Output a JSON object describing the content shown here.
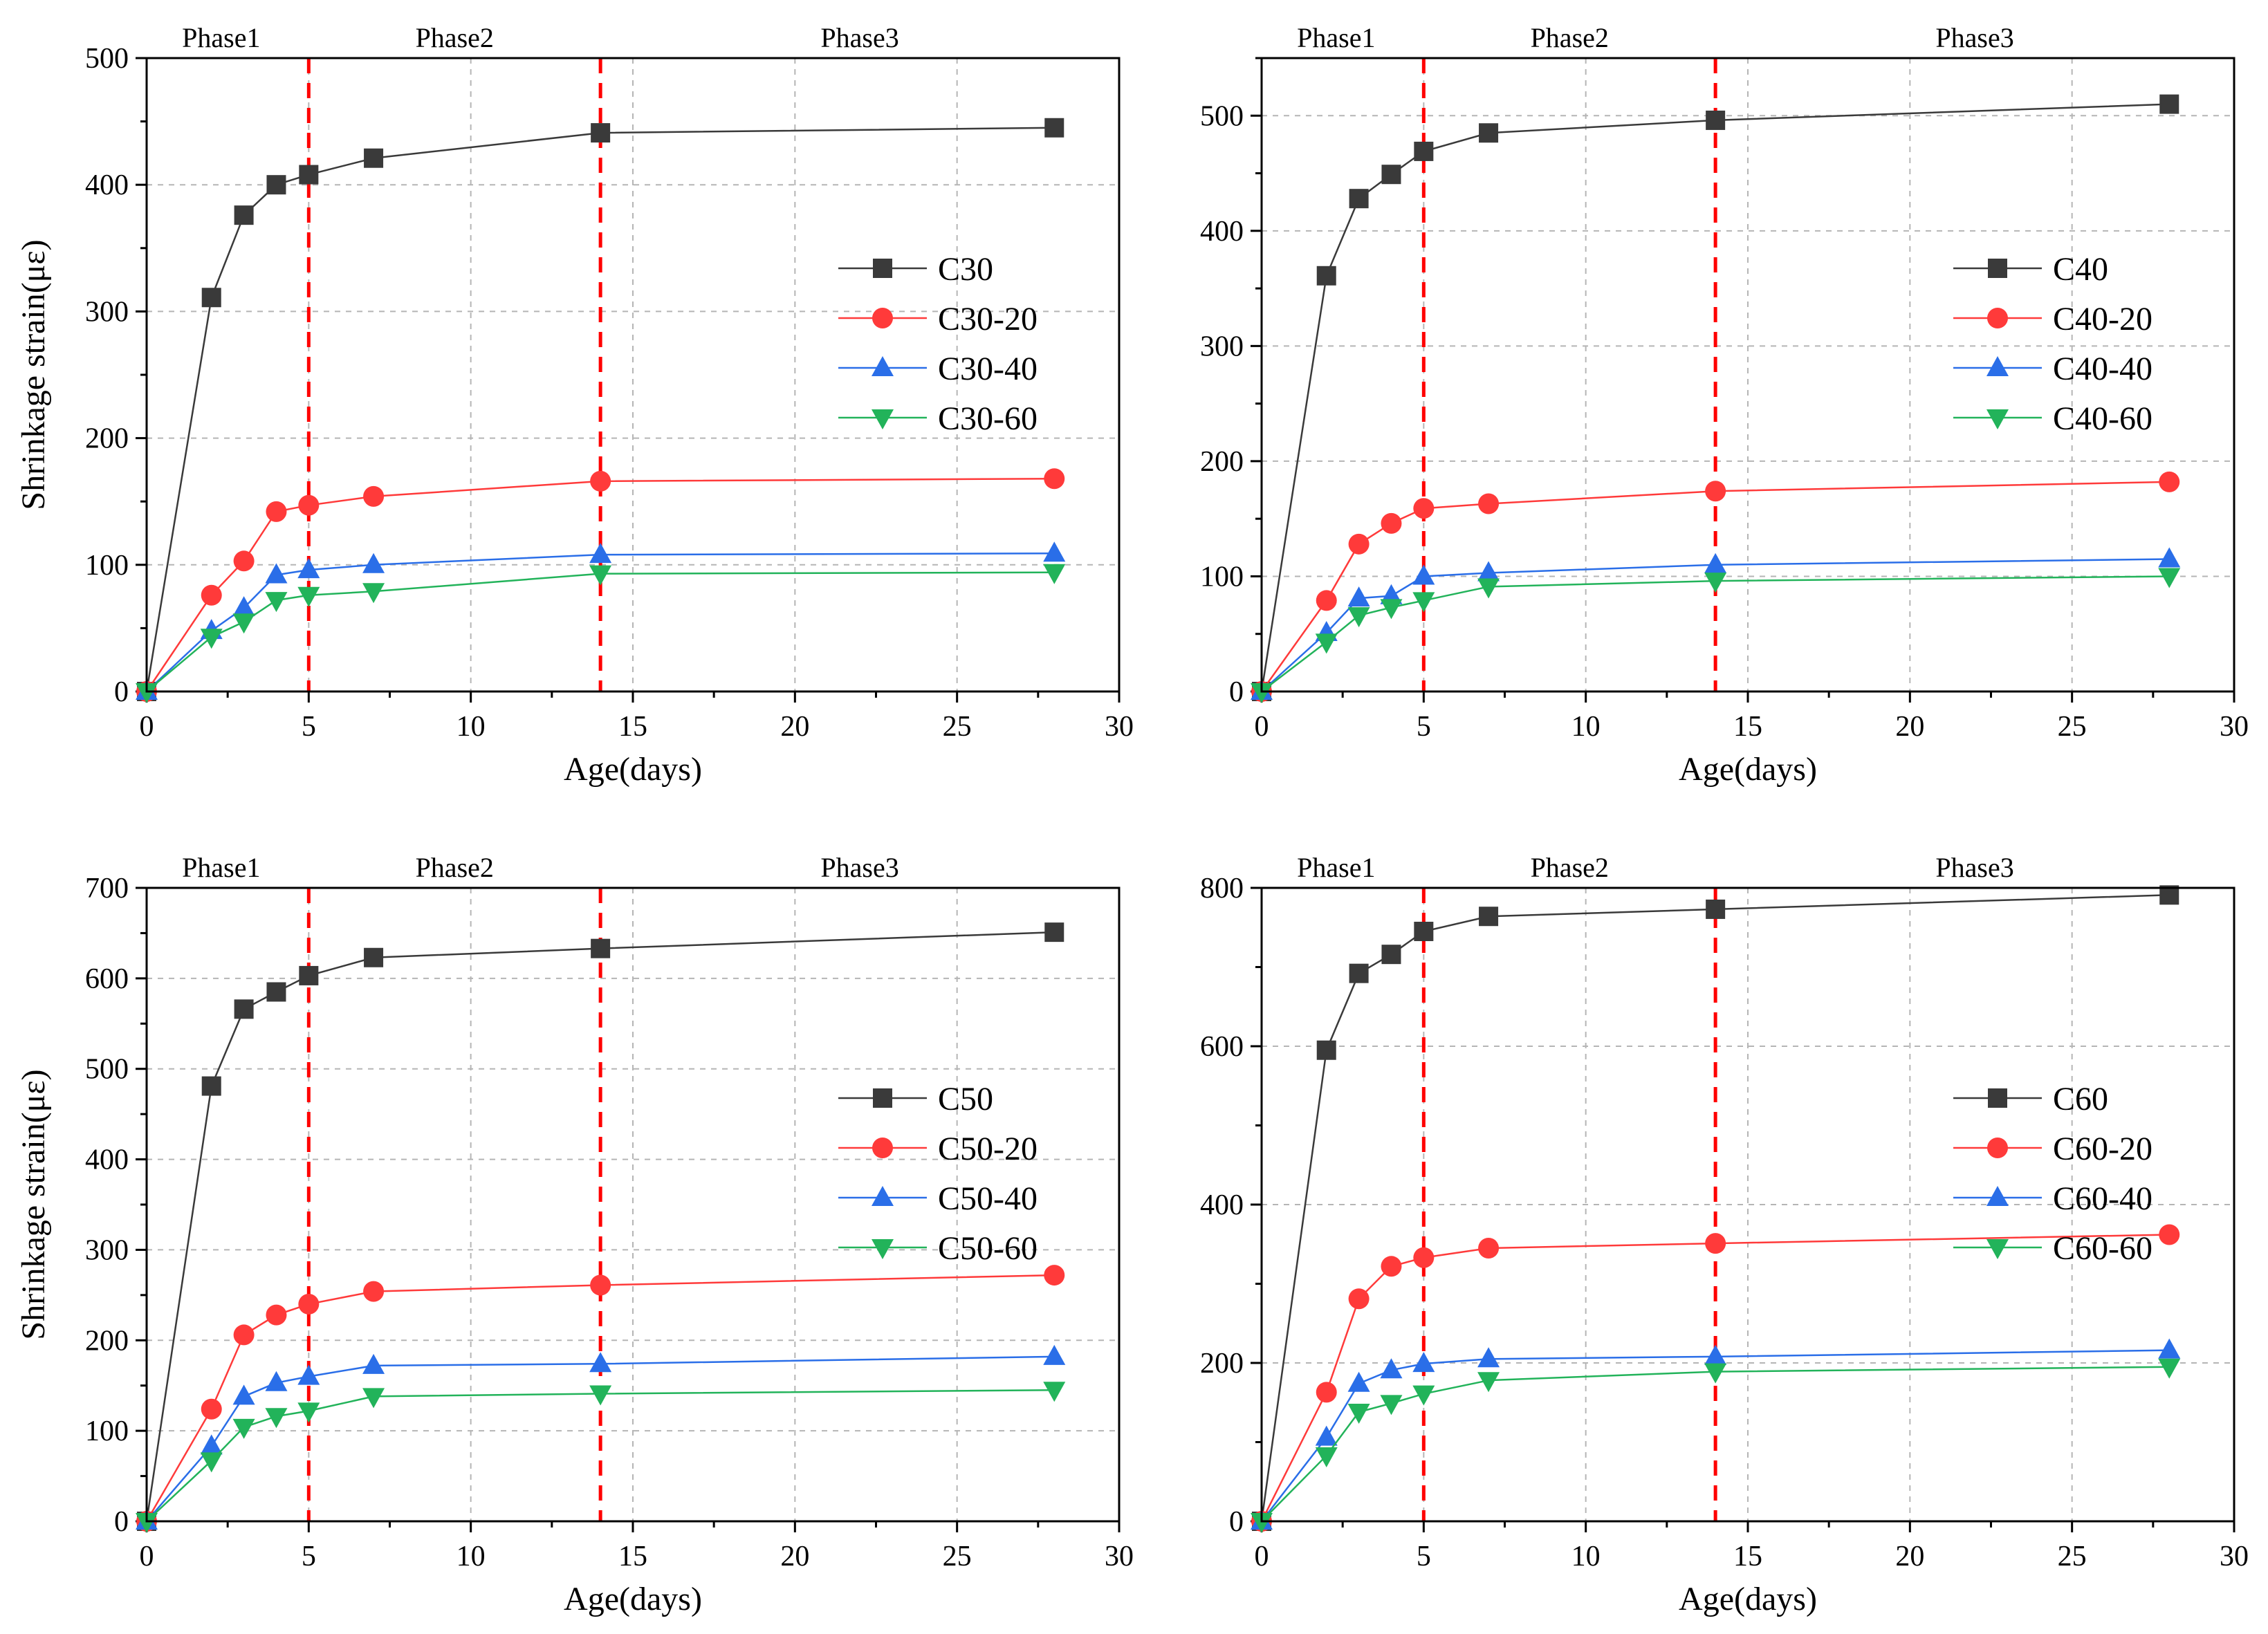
{
  "chart_data": [
    {
      "type": "line",
      "panel": "top-left",
      "xlabel": "Age(days)",
      "ylabel": "Shrinkage strain(με)",
      "xlim": [
        0,
        30
      ],
      "ylim": [
        0,
        500
      ],
      "xticks": [
        0,
        5,
        10,
        15,
        20,
        25,
        30
      ],
      "yticks": [
        0,
        100,
        200,
        300,
        400,
        500
      ],
      "grid": true,
      "legend_position": "center-right",
      "phase_lines": [
        5,
        14
      ],
      "phases": [
        {
          "label": "Phase1",
          "at": 2.3
        },
        {
          "label": "Phase2",
          "at": 9.5
        },
        {
          "label": "Phase3",
          "at": 22.0
        }
      ],
      "x": [
        0,
        2,
        3,
        4,
        5,
        7,
        14,
        28
      ],
      "series": [
        {
          "name": "C30",
          "marker": "square",
          "color": "#3a3a3a",
          "values": [
            0,
            311,
            376,
            400,
            408,
            421,
            441,
            445
          ]
        },
        {
          "name": "C30-20",
          "marker": "circle",
          "color": "#ff3a3a",
          "values": [
            0,
            76,
            103,
            142,
            147,
            154,
            166,
            168
          ]
        },
        {
          "name": "C30-40",
          "marker": "triangle-up",
          "color": "#2a6ee8",
          "values": [
            0,
            48,
            66,
            92,
            96,
            100,
            108,
            109
          ]
        },
        {
          "name": "C30-60",
          "marker": "triangle-down",
          "color": "#22b35a",
          "values": [
            0,
            43,
            55,
            72,
            76,
            79,
            93,
            94
          ]
        }
      ]
    },
    {
      "type": "line",
      "panel": "top-right",
      "xlabel": "Age(days)",
      "ylabel": "",
      "xlim": [
        0,
        30
      ],
      "ylim": [
        0,
        550
      ],
      "xticks": [
        0,
        5,
        10,
        15,
        20,
        25,
        30
      ],
      "yticks": [
        0,
        100,
        200,
        300,
        400,
        500
      ],
      "grid": true,
      "legend_position": "center-right",
      "phase_lines": [
        5,
        14
      ],
      "phases": [
        {
          "label": "Phase1",
          "at": 2.3
        },
        {
          "label": "Phase2",
          "at": 9.5
        },
        {
          "label": "Phase3",
          "at": 22.0
        }
      ],
      "x": [
        0,
        2,
        3,
        4,
        5,
        7,
        14,
        28
      ],
      "series": [
        {
          "name": "C40",
          "marker": "square",
          "color": "#3a3a3a",
          "values": [
            0,
            361,
            428,
            449,
            469,
            485,
            496,
            510
          ]
        },
        {
          "name": "C40-20",
          "marker": "circle",
          "color": "#ff3a3a",
          "values": [
            0,
            79,
            128,
            146,
            159,
            163,
            174,
            182
          ]
        },
        {
          "name": "C40-40",
          "marker": "triangle-up",
          "color": "#2a6ee8",
          "values": [
            0,
            51,
            81,
            83,
            100,
            103,
            110,
            115
          ]
        },
        {
          "name": "C40-60",
          "marker": "triangle-down",
          "color": "#22b35a",
          "values": [
            0,
            43,
            66,
            73,
            79,
            91,
            96,
            100
          ]
        }
      ]
    },
    {
      "type": "line",
      "panel": "bottom-left",
      "xlabel": "Age(days)",
      "ylabel": "Shrinkage strain(με)",
      "xlim": [
        0,
        30
      ],
      "ylim": [
        0,
        700
      ],
      "xticks": [
        0,
        5,
        10,
        15,
        20,
        25,
        30
      ],
      "yticks": [
        0,
        100,
        200,
        300,
        400,
        500,
        600,
        700
      ],
      "grid": true,
      "legend_position": "center-right",
      "phase_lines": [
        5,
        14
      ],
      "phases": [
        {
          "label": "Phase1",
          "at": 2.3
        },
        {
          "label": "Phase2",
          "at": 9.5
        },
        {
          "label": "Phase3",
          "at": 22.0
        }
      ],
      "x": [
        0,
        2,
        3,
        4,
        5,
        7,
        14,
        28
      ],
      "series": [
        {
          "name": "C50",
          "marker": "square",
          "color": "#3a3a3a",
          "values": [
            0,
            481,
            566,
            585,
            603,
            623,
            633,
            651
          ]
        },
        {
          "name": "C50-20",
          "marker": "circle",
          "color": "#ff3a3a",
          "values": [
            0,
            124,
            206,
            228,
            240,
            254,
            261,
            272
          ]
        },
        {
          "name": "C50-40",
          "marker": "triangle-up",
          "color": "#2a6ee8",
          "values": [
            0,
            83,
            138,
            153,
            160,
            172,
            174,
            182
          ]
        },
        {
          "name": "C50-60",
          "marker": "triangle-down",
          "color": "#22b35a",
          "values": [
            0,
            67,
            104,
            116,
            122,
            138,
            141,
            145
          ]
        }
      ]
    },
    {
      "type": "line",
      "panel": "bottom-right",
      "xlabel": "Age(days)",
      "ylabel": "",
      "xlim": [
        0,
        30
      ],
      "ylim": [
        0,
        800
      ],
      "xticks": [
        0,
        5,
        10,
        15,
        20,
        25,
        30
      ],
      "yticks": [
        0,
        200,
        400,
        600,
        800
      ],
      "grid": true,
      "legend_position": "center-right",
      "phase_lines": [
        5,
        14
      ],
      "phases": [
        {
          "label": "Phase1",
          "at": 2.3
        },
        {
          "label": "Phase2",
          "at": 9.5
        },
        {
          "label": "Phase3",
          "at": 22.0
        }
      ],
      "x": [
        0,
        2,
        3,
        4,
        5,
        7,
        14,
        28
      ],
      "series": [
        {
          "name": "C60",
          "marker": "square",
          "color": "#3a3a3a",
          "values": [
            0,
            595,
            692,
            716,
            745,
            764,
            773,
            791
          ]
        },
        {
          "name": "C60-20",
          "marker": "circle",
          "color": "#ff3a3a",
          "values": [
            0,
            163,
            281,
            322,
            333,
            345,
            351,
            362
          ]
        },
        {
          "name": "C60-40",
          "marker": "triangle-up",
          "color": "#2a6ee8",
          "values": [
            0,
            106,
            174,
            191,
            199,
            205,
            208,
            216
          ]
        },
        {
          "name": "C60-60",
          "marker": "triangle-down",
          "color": "#22b35a",
          "values": [
            0,
            83,
            138,
            149,
            161,
            178,
            189,
            195
          ]
        }
      ]
    }
  ]
}
